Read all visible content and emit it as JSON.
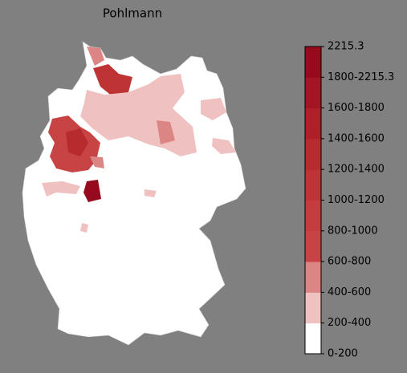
{
  "title": "Pohlmann",
  "colorbar": {
    "labels": [
      "0-200",
      "200-400",
      "400-600",
      "600-800",
      "800-1000",
      "1000-1200",
      "1200-1400",
      "1400-1600",
      "1600-1800",
      "1800-2215.3",
      "2215.3"
    ],
    "colors": [
      "#ffffff",
      "#efc1c1",
      "#dc8585",
      "#c84444",
      "#c43c3c",
      "#be3434",
      "#b72a2d",
      "#ae1f2a",
      "#a31424",
      "#970a1e"
    ]
  }
}
